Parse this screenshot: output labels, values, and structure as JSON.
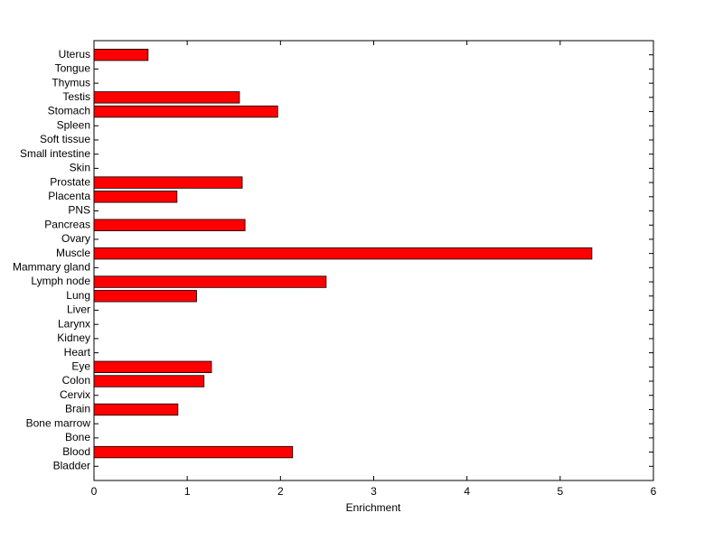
{
  "chart_data": {
    "type": "barh",
    "x_label": "Enrichment",
    "categories": [
      "Bladder",
      "Blood",
      "Bone",
      "Bone marrow",
      "Brain",
      "Cervix",
      "Colon",
      "Eye",
      "Heart",
      "Kidney",
      "Larynx",
      "Liver",
      "Lung",
      "Lymph node",
      "Mammary gland",
      "Muscle",
      "Ovary",
      "Pancreas",
      "PNS",
      "Placenta",
      "Prostate",
      "Skin",
      "Small intestine",
      "Soft tissue",
      "Spleen",
      "Stomach",
      "Testis",
      "Thymus",
      "Tongue",
      "Uterus"
    ],
    "values": [
      0,
      2.13,
      0,
      0,
      0.9,
      0,
      1.18,
      1.26,
      0,
      0,
      0,
      0,
      1.1,
      2.49,
      0,
      5.34,
      0,
      1.62,
      0,
      0.89,
      1.59,
      0,
      0,
      0,
      0,
      1.97,
      1.56,
      0,
      0,
      0.58
    ],
    "color": "#ff0000",
    "xlim": [
      0,
      6
    ],
    "xticks": [
      0,
      1,
      2,
      3,
      4,
      5,
      6
    ]
  }
}
